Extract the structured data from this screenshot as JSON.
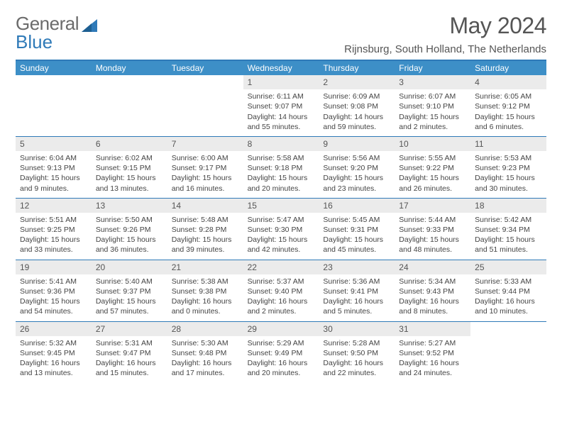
{
  "brand": {
    "word1": "General",
    "word2": "Blue",
    "color_gray": "#6b6b6b",
    "color_blue": "#2f7ab8"
  },
  "title": "May 2024",
  "location": "Rijnsburg, South Holland, The Netherlands",
  "colors": {
    "header_bg": "#3d8fc7",
    "rule": "#2f7ab8",
    "daynum_bg": "#ebebeb",
    "text": "#444444"
  },
  "days_of_week": [
    "Sunday",
    "Monday",
    "Tuesday",
    "Wednesday",
    "Thursday",
    "Friday",
    "Saturday"
  ],
  "weeks": [
    [
      null,
      null,
      null,
      {
        "n": "1",
        "sr": "Sunrise: 6:11 AM",
        "ss": "Sunset: 9:07 PM",
        "dl": "Daylight: 14 hours and 55 minutes."
      },
      {
        "n": "2",
        "sr": "Sunrise: 6:09 AM",
        "ss": "Sunset: 9:08 PM",
        "dl": "Daylight: 14 hours and 59 minutes."
      },
      {
        "n": "3",
        "sr": "Sunrise: 6:07 AM",
        "ss": "Sunset: 9:10 PM",
        "dl": "Daylight: 15 hours and 2 minutes."
      },
      {
        "n": "4",
        "sr": "Sunrise: 6:05 AM",
        "ss": "Sunset: 9:12 PM",
        "dl": "Daylight: 15 hours and 6 minutes."
      }
    ],
    [
      {
        "n": "5",
        "sr": "Sunrise: 6:04 AM",
        "ss": "Sunset: 9:13 PM",
        "dl": "Daylight: 15 hours and 9 minutes."
      },
      {
        "n": "6",
        "sr": "Sunrise: 6:02 AM",
        "ss": "Sunset: 9:15 PM",
        "dl": "Daylight: 15 hours and 13 minutes."
      },
      {
        "n": "7",
        "sr": "Sunrise: 6:00 AM",
        "ss": "Sunset: 9:17 PM",
        "dl": "Daylight: 15 hours and 16 minutes."
      },
      {
        "n": "8",
        "sr": "Sunrise: 5:58 AM",
        "ss": "Sunset: 9:18 PM",
        "dl": "Daylight: 15 hours and 20 minutes."
      },
      {
        "n": "9",
        "sr": "Sunrise: 5:56 AM",
        "ss": "Sunset: 9:20 PM",
        "dl": "Daylight: 15 hours and 23 minutes."
      },
      {
        "n": "10",
        "sr": "Sunrise: 5:55 AM",
        "ss": "Sunset: 9:22 PM",
        "dl": "Daylight: 15 hours and 26 minutes."
      },
      {
        "n": "11",
        "sr": "Sunrise: 5:53 AM",
        "ss": "Sunset: 9:23 PM",
        "dl": "Daylight: 15 hours and 30 minutes."
      }
    ],
    [
      {
        "n": "12",
        "sr": "Sunrise: 5:51 AM",
        "ss": "Sunset: 9:25 PM",
        "dl": "Daylight: 15 hours and 33 minutes."
      },
      {
        "n": "13",
        "sr": "Sunrise: 5:50 AM",
        "ss": "Sunset: 9:26 PM",
        "dl": "Daylight: 15 hours and 36 minutes."
      },
      {
        "n": "14",
        "sr": "Sunrise: 5:48 AM",
        "ss": "Sunset: 9:28 PM",
        "dl": "Daylight: 15 hours and 39 minutes."
      },
      {
        "n": "15",
        "sr": "Sunrise: 5:47 AM",
        "ss": "Sunset: 9:30 PM",
        "dl": "Daylight: 15 hours and 42 minutes."
      },
      {
        "n": "16",
        "sr": "Sunrise: 5:45 AM",
        "ss": "Sunset: 9:31 PM",
        "dl": "Daylight: 15 hours and 45 minutes."
      },
      {
        "n": "17",
        "sr": "Sunrise: 5:44 AM",
        "ss": "Sunset: 9:33 PM",
        "dl": "Daylight: 15 hours and 48 minutes."
      },
      {
        "n": "18",
        "sr": "Sunrise: 5:42 AM",
        "ss": "Sunset: 9:34 PM",
        "dl": "Daylight: 15 hours and 51 minutes."
      }
    ],
    [
      {
        "n": "19",
        "sr": "Sunrise: 5:41 AM",
        "ss": "Sunset: 9:36 PM",
        "dl": "Daylight: 15 hours and 54 minutes."
      },
      {
        "n": "20",
        "sr": "Sunrise: 5:40 AM",
        "ss": "Sunset: 9:37 PM",
        "dl": "Daylight: 15 hours and 57 minutes."
      },
      {
        "n": "21",
        "sr": "Sunrise: 5:38 AM",
        "ss": "Sunset: 9:38 PM",
        "dl": "Daylight: 16 hours and 0 minutes."
      },
      {
        "n": "22",
        "sr": "Sunrise: 5:37 AM",
        "ss": "Sunset: 9:40 PM",
        "dl": "Daylight: 16 hours and 2 minutes."
      },
      {
        "n": "23",
        "sr": "Sunrise: 5:36 AM",
        "ss": "Sunset: 9:41 PM",
        "dl": "Daylight: 16 hours and 5 minutes."
      },
      {
        "n": "24",
        "sr": "Sunrise: 5:34 AM",
        "ss": "Sunset: 9:43 PM",
        "dl": "Daylight: 16 hours and 8 minutes."
      },
      {
        "n": "25",
        "sr": "Sunrise: 5:33 AM",
        "ss": "Sunset: 9:44 PM",
        "dl": "Daylight: 16 hours and 10 minutes."
      }
    ],
    [
      {
        "n": "26",
        "sr": "Sunrise: 5:32 AM",
        "ss": "Sunset: 9:45 PM",
        "dl": "Daylight: 16 hours and 13 minutes."
      },
      {
        "n": "27",
        "sr": "Sunrise: 5:31 AM",
        "ss": "Sunset: 9:47 PM",
        "dl": "Daylight: 16 hours and 15 minutes."
      },
      {
        "n": "28",
        "sr": "Sunrise: 5:30 AM",
        "ss": "Sunset: 9:48 PM",
        "dl": "Daylight: 16 hours and 17 minutes."
      },
      {
        "n": "29",
        "sr": "Sunrise: 5:29 AM",
        "ss": "Sunset: 9:49 PM",
        "dl": "Daylight: 16 hours and 20 minutes."
      },
      {
        "n": "30",
        "sr": "Sunrise: 5:28 AM",
        "ss": "Sunset: 9:50 PM",
        "dl": "Daylight: 16 hours and 22 minutes."
      },
      {
        "n": "31",
        "sr": "Sunrise: 5:27 AM",
        "ss": "Sunset: 9:52 PM",
        "dl": "Daylight: 16 hours and 24 minutes."
      },
      null
    ]
  ]
}
